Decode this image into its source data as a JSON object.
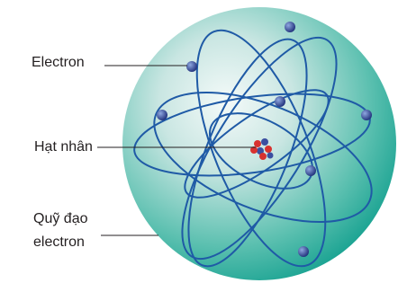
{
  "labels": {
    "electron": "Electron",
    "nucleus": "Hạt nhân",
    "orbit": [
      "Quỹ đạo",
      "electron"
    ]
  }
}
